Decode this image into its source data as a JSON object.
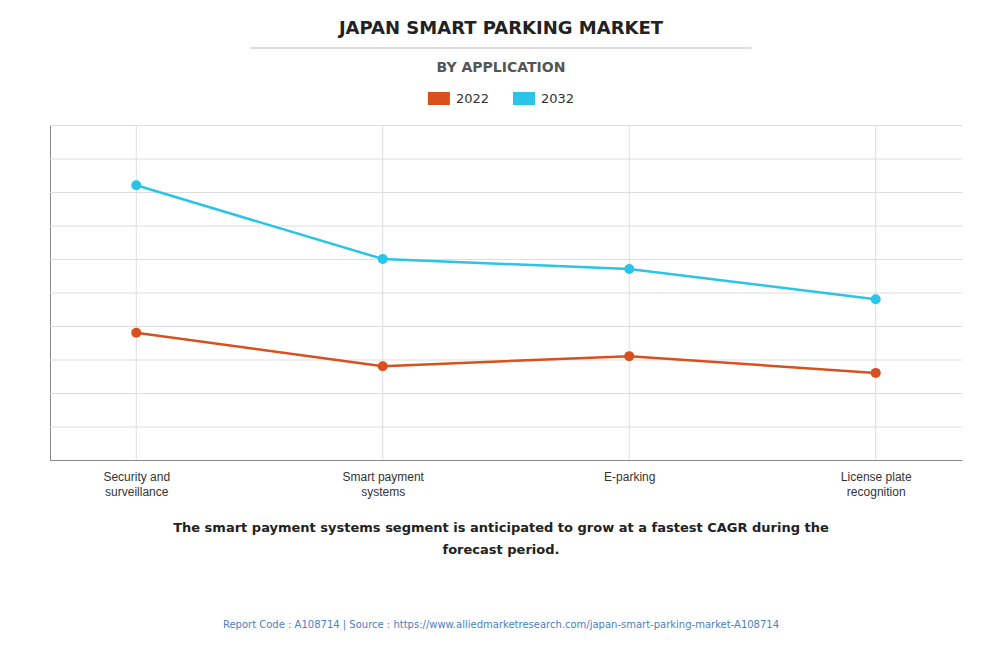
{
  "chart_data": {
    "type": "line",
    "title": "JAPAN SMART PARKING MARKET",
    "subtitle": "BY APPLICATION",
    "categories": [
      "Security and\nsurveillance",
      "Smart payment\nsystems",
      "E-parking",
      "License plate\nrecognition"
    ],
    "series": [
      {
        "name": "2022",
        "color": "#d94f1e",
        "marker": "circle",
        "line_style": "solid",
        "values": [
          0.38,
          0.28,
          0.31,
          0.26
        ]
      },
      {
        "name": "2032",
        "color": "#29c4e8",
        "marker": "circle",
        "line_style": "solid",
        "values": [
          0.82,
          0.6,
          0.57,
          0.48
        ]
      }
    ],
    "ylim": [
      0.0,
      1.0
    ],
    "yticks": [
      0.1,
      0.2,
      0.3,
      0.4,
      0.5,
      0.6,
      0.7,
      0.8,
      0.9,
      1.0
    ],
    "grid": true,
    "legend": "top",
    "tick_labels": "x",
    "annotations": [
      "The smart payment systems segment is anticipated to grow at a fastest CAGR during the",
      "forecast period."
    ],
    "footer": "Report Code : A108714  |  Source : https://www.alliedmarketresearch.com/japan-smart-parking-market-A108714"
  }
}
